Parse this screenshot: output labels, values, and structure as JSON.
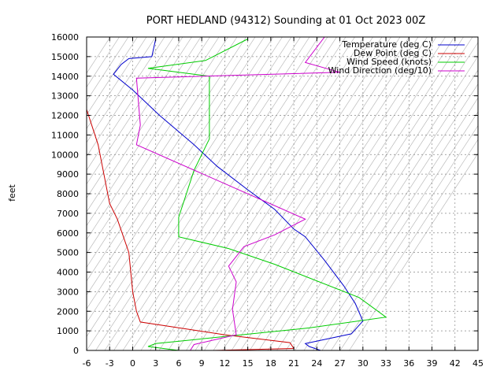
{
  "chart_data": {
    "type": "line",
    "title": "PORT HEDLAND (94312) Sounding at 01 Oct 2023 00Z",
    "ylabel": "feet",
    "xlabel": "",
    "xlim": [
      -6,
      45
    ],
    "ylim": [
      0,
      16000
    ],
    "x_ticks": [
      -6,
      -3,
      0,
      3,
      6,
      9,
      12,
      15,
      18,
      21,
      24,
      27,
      30,
      33,
      36,
      39,
      42,
      45
    ],
    "y_ticks": [
      0,
      1000,
      2000,
      3000,
      4000,
      5000,
      6000,
      7000,
      8000,
      9000,
      10000,
      11000,
      12000,
      13000,
      14000,
      15000,
      16000
    ],
    "grid": true,
    "legend_position": "top-right",
    "series": [
      {
        "name": "Temperature (deg C)",
        "color": "#0000cc",
        "points": [
          [
            24.5,
            0
          ],
          [
            23,
            200
          ],
          [
            22.5,
            350
          ],
          [
            28.5,
            850
          ],
          [
            30,
            1500
          ],
          [
            29,
            2400
          ],
          [
            27.5,
            3300
          ],
          [
            25,
            4600
          ],
          [
            22.5,
            5800
          ],
          [
            21,
            6200
          ],
          [
            18.5,
            7200
          ],
          [
            15,
            8200
          ],
          [
            11,
            9400
          ],
          [
            8,
            10500
          ],
          [
            3.5,
            12000
          ],
          [
            0,
            13300
          ],
          [
            -2.5,
            14100
          ],
          [
            -1.5,
            14600
          ],
          [
            -0.5,
            14900
          ],
          [
            2.5,
            15000
          ],
          [
            3,
            15900
          ]
        ]
      },
      {
        "name": "Dew Point (deg C)",
        "color": "#cc0000",
        "points": [
          [
            10.5,
            0
          ],
          [
            21,
            100
          ],
          [
            20.5,
            400
          ],
          [
            12,
            800
          ],
          [
            1,
            1450
          ],
          [
            0.5,
            2000
          ],
          [
            0,
            3000
          ],
          [
            -0.5,
            5000
          ],
          [
            -2,
            6700
          ],
          [
            -3,
            7500
          ],
          [
            -4,
            9500
          ],
          [
            -4.5,
            10500
          ],
          [
            -6,
            12300
          ],
          [
            -6.5,
            13000
          ],
          [
            -7,
            13400
          ]
        ]
      },
      {
        "name": "Wind Speed (knots)",
        "color": "#00cc00",
        "points": [
          [
            6,
            0
          ],
          [
            2,
            200
          ],
          [
            3,
            350
          ],
          [
            23,
            1150
          ],
          [
            33,
            1700
          ],
          [
            29.5,
            2700
          ],
          [
            18.5,
            4400
          ],
          [
            12.5,
            5200
          ],
          [
            6,
            5800
          ],
          [
            6,
            6800
          ],
          [
            8,
            9200
          ],
          [
            10,
            10800
          ],
          [
            10,
            14000
          ],
          [
            2,
            14400
          ],
          [
            9.5,
            14800
          ],
          [
            15,
            15900
          ]
        ]
      },
      {
        "name": "Wind Direction (deg/10)",
        "color": "#cc00cc",
        "points": [
          [
            7.5,
            0
          ],
          [
            8,
            300
          ],
          [
            13.5,
            800
          ],
          [
            13,
            2100
          ],
          [
            13.5,
            3500
          ],
          [
            12.5,
            4300
          ],
          [
            14.5,
            5300
          ],
          [
            18.5,
            5900
          ],
          [
            22.5,
            6700
          ],
          [
            0.5,
            10500
          ],
          [
            1,
            11500
          ],
          [
            0.5,
            13900
          ],
          [
            27,
            14200
          ],
          [
            22.5,
            14700
          ],
          [
            25,
            16000
          ]
        ]
      }
    ]
  }
}
